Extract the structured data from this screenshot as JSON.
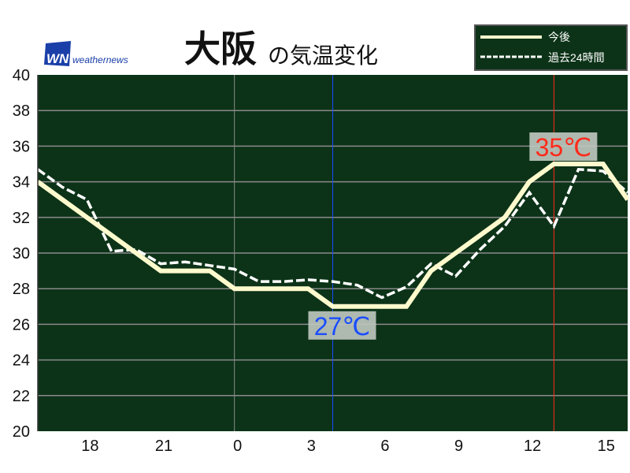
{
  "header": {
    "title_main": "大阪",
    "title_sub": "の気温変化",
    "logo_mark": "WN",
    "logo_text": "weathernews"
  },
  "chart_data": {
    "type": "line",
    "title": "大阪の気温変化",
    "xlabel": "",
    "ylabel": "",
    "ylim": [
      20,
      40
    ],
    "yticks": [
      "20",
      "22",
      "24",
      "26",
      "28",
      "30",
      "32",
      "34",
      "36",
      "38",
      "40"
    ],
    "x_hours": [
      "16",
      "17",
      "18",
      "19",
      "20",
      "21",
      "22",
      "23",
      "0",
      "1",
      "2",
      "3",
      "4",
      "5",
      "6",
      "7",
      "8",
      "9",
      "10",
      "11",
      "12",
      "13",
      "14",
      "15",
      "16"
    ],
    "xticks": [
      "18",
      "21",
      "0",
      "3",
      "6",
      "9",
      "12",
      "15"
    ],
    "grid": true,
    "legend_position": "top-right",
    "series": [
      {
        "name": "今後",
        "style": "solid",
        "color": "#fffacd",
        "values": [
          34,
          33,
          32,
          31,
          30,
          29,
          29,
          29,
          28,
          28,
          28,
          28,
          27,
          27,
          27,
          27,
          29,
          30,
          31,
          32,
          34,
          35,
          35,
          35,
          33
        ]
      },
      {
        "name": "過去24時間",
        "style": "dashed",
        "color": "#ffffff",
        "values": [
          34.7,
          33.7,
          33.0,
          30.1,
          30.2,
          29.4,
          29.5,
          29.3,
          29.1,
          28.4,
          28.4,
          28.5,
          28.4,
          28.2,
          27.5,
          28.1,
          29.4,
          28.7,
          30.2,
          31.5,
          33.4,
          31.5,
          34.7,
          34.6,
          33.4
        ]
      }
    ],
    "annotations": [
      {
        "label": "35℃",
        "hour_index": 21,
        "value": 35,
        "color": "#ff2a1a",
        "kind": "max"
      },
      {
        "label": "27℃",
        "hour_index": 12,
        "value": 27,
        "color": "#1a4dff",
        "kind": "min"
      }
    ],
    "colors": {
      "background": "#0c3318",
      "grid": "#8a8a8a"
    }
  }
}
